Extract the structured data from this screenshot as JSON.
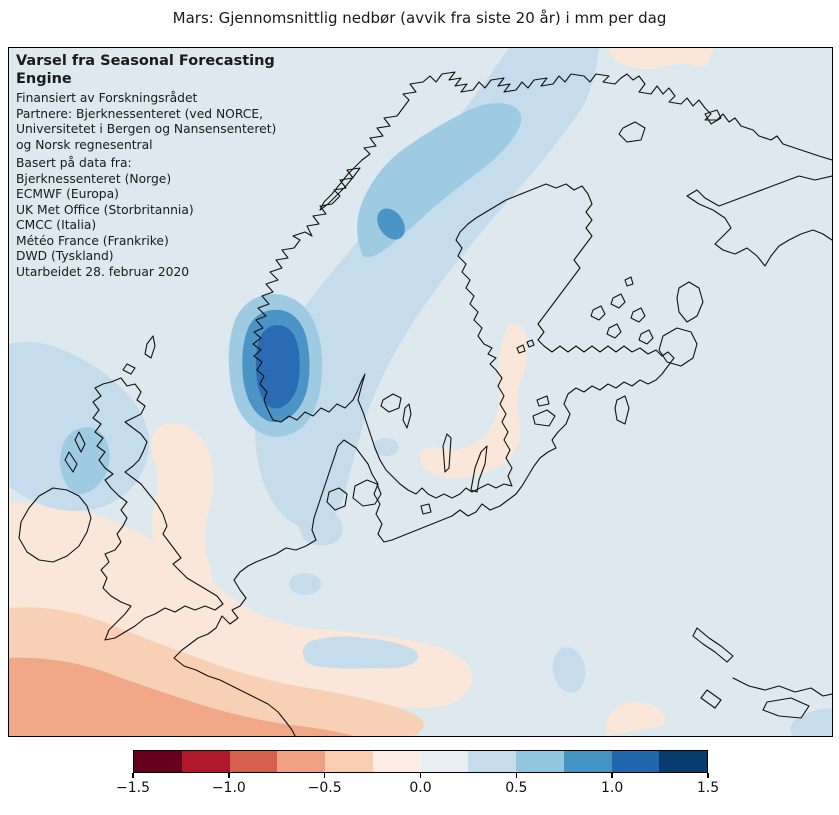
{
  "figure_title": "Mars: Gjennomsnittlig nedbør (avvik fra siste 20 år) i mm per dag",
  "overlay": {
    "heading": "Varsel fra Seasonal Forecasting Engine",
    "credit_lines": [
      "Finansiert av Forskningsrådet",
      "Partnere: Bjerknessenteret (ved NORCE,",
      "Universitetet i Bergen og Nansensenteret)",
      "og Norsk regnesentral"
    ],
    "sources_header": "Basert på data fra:",
    "sources": [
      "Bjerknessenteret (Norge)",
      "ECMWF (Europa)",
      "UK Met Office (Storbritannia)",
      "CMCC (Italia)",
      "Météo France (Frankrike)",
      "DWD (Tyskland)"
    ],
    "issued": "Utarbeidet 28. februar 2020"
  },
  "colorbar": {
    "unit": "mm per dag (avvik)",
    "min": -1.5,
    "max": 1.5,
    "step": 0.25,
    "tick_labels": [
      "−1.5",
      "−1.0",
      "−0.5",
      "0.0",
      "0.5",
      "1.0",
      "1.5"
    ],
    "segment_colors": [
      "#67001f",
      "#b2182b",
      "#d6604d",
      "#f1a183",
      "#fbcdb2",
      "#fcece3",
      "#e8eff4",
      "#c5dcec",
      "#92c5de",
      "#4393c3",
      "#2166ac",
      "#093c6e"
    ]
  },
  "palette": {
    "map-bg": "#dde8ef",
    "blue1": "#c5dcec",
    "blue2": "#9ecae2",
    "blue3": "#4a94c6",
    "blue4": "#2a6cb3",
    "pink1": "#fbe7da",
    "pink2": "#f8d0b6",
    "pink3": "#f1a888",
    "coast": "#111111",
    "frame": "#000000"
  },
  "map": {
    "area": "Nord-Europa / Skandinavia / Østersjøen",
    "anomaly_regions": [
      {
        "name": "Norskekysten (bånd langs kysten)",
        "level_mm_per_dag": "+0.25 til +0.5"
      },
      {
        "name": "Sørvest-Norge (kjerne)",
        "level_mm_per_dag": "+1.0 til +1.25"
      },
      {
        "name": "Lofoten / Nordlandskysten",
        "level_mm_per_dag": "+0.5 til +1.0"
      },
      {
        "name": "Vest-Skottland",
        "level_mm_per_dag": "+0.25 til +0.75"
      },
      {
        "name": "Tyskebukta / danskekysten",
        "level_mm_per_dag": "+0.25 til +0.5"
      },
      {
        "name": "Sørlige Nordsjøen (flekker)",
        "level_mm_per_dag": "+0.25 til +0.5"
      },
      {
        "name": "Øst-England",
        "level_mm_per_dag": "−0.25 til −0.5"
      },
      {
        "name": "Sør-Sverige / Østersjøkysten",
        "level_mm_per_dag": "−0.25 til −0.5"
      },
      {
        "name": "Barentshavet (øvre kant)",
        "level_mm_per_dag": "−0.25 til −0.5"
      },
      {
        "name": "Frankrike / Biscaya (nedre venstre hjørne)",
        "level_mm_per_dag": "−0.5 til −1.0"
      }
    ]
  }
}
